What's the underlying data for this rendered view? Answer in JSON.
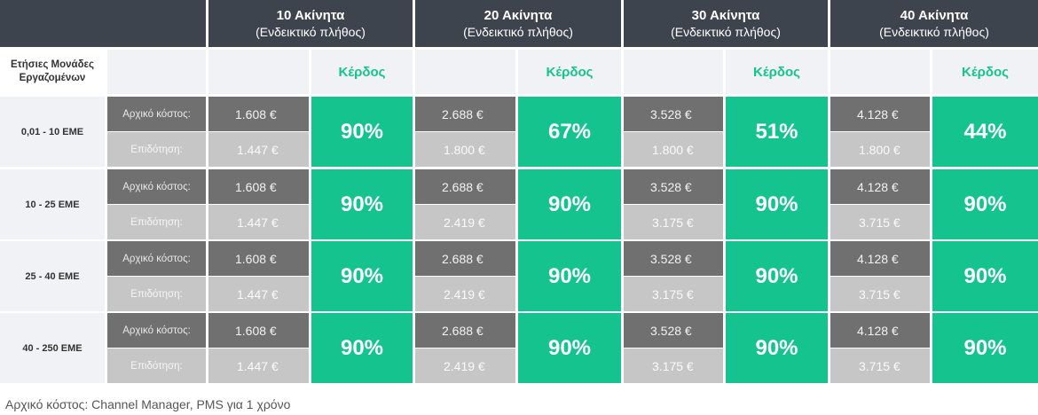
{
  "header": {
    "columns": [
      {
        "title": "10 Ακίνητα",
        "subtitle": "(Ενδεικτικό πλήθος)"
      },
      {
        "title": "20 Ακίνητα",
        "subtitle": "(Ενδεικτικό πλήθος)"
      },
      {
        "title": "30 Ακίνητα",
        "subtitle": "(Ενδεικτικό πλήθος)"
      },
      {
        "title": "40 Ακίνητα",
        "subtitle": "(Ενδεικτικό πλήθος)"
      }
    ],
    "row_header_line1": "Ετήσιες Μονάδες",
    "row_header_line2": "Εργαζομένων",
    "profit_label": "Κέρδος"
  },
  "labels": {
    "initial_cost": "Αρχικό κόστος:",
    "subsidy": "Επιδότηση:"
  },
  "rows": [
    {
      "label": "0,01 - 10 ΕΜΕ",
      "groups": [
        {
          "cost": "1.608 €",
          "subsidy": "1.447 €",
          "profit": "90%"
        },
        {
          "cost": "2.688 €",
          "subsidy": "1.800 €",
          "profit": "67%"
        },
        {
          "cost": "3.528 €",
          "subsidy": "1.800 €",
          "profit": "51%"
        },
        {
          "cost": "4.128 €",
          "subsidy": "1.800 €",
          "profit": "44%"
        }
      ]
    },
    {
      "label": "10 - 25 ΕΜΕ",
      "groups": [
        {
          "cost": "1.608 €",
          "subsidy": "1.447 €",
          "profit": "90%"
        },
        {
          "cost": "2.688 €",
          "subsidy": "2.419 €",
          "profit": "90%"
        },
        {
          "cost": "3.528 €",
          "subsidy": "3.175 €",
          "profit": "90%"
        },
        {
          "cost": "4.128 €",
          "subsidy": "3.715 €",
          "profit": "90%"
        }
      ]
    },
    {
      "label": "25 - 40 ΕΜΕ",
      "groups": [
        {
          "cost": "1.608 €",
          "subsidy": "1.447 €",
          "profit": "90%"
        },
        {
          "cost": "2.688 €",
          "subsidy": "2.419 €",
          "profit": "90%"
        },
        {
          "cost": "3.528 €",
          "subsidy": "3.175 €",
          "profit": "90%"
        },
        {
          "cost": "4.128 €",
          "subsidy": "3.715 €",
          "profit": "90%"
        }
      ]
    },
    {
      "label": "40 - 250 ΕΜΕ",
      "groups": [
        {
          "cost": "1.608 €",
          "subsidy": "1.447 €",
          "profit": "90%"
        },
        {
          "cost": "2.688 €",
          "subsidy": "2.419 €",
          "profit": "90%"
        },
        {
          "cost": "3.528 €",
          "subsidy": "3.175 €",
          "profit": "90%"
        },
        {
          "cost": "4.128 €",
          "subsidy": "3.715 €",
          "profit": "90%"
        }
      ]
    }
  ],
  "footnote": "Αρχικό κόστος: Channel Manager, PMS για 1 χρόνο",
  "colors": {
    "header_bg": "#3d444d",
    "accent_green": "#15c38e",
    "dark_gray": "#707070",
    "light_gray": "#c6c6c6",
    "pale_bg": "#f0f2f5"
  }
}
